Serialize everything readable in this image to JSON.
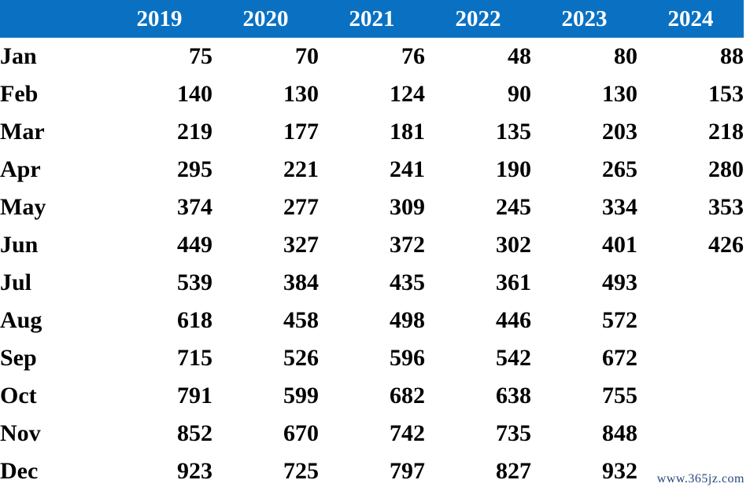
{
  "colors": {
    "header_bg": "#0a71c2",
    "header_text": "#ffffff",
    "body_text": "#000000",
    "watermark_text": "#25477d"
  },
  "table": {
    "columns": [
      "",
      "2019",
      "2020",
      "2021",
      "2022",
      "2023",
      "2024"
    ],
    "rows": [
      {
        "month": "Jan",
        "values": [
          "75",
          "70",
          "76",
          "48",
          "80",
          "88"
        ]
      },
      {
        "month": "Feb",
        "values": [
          "140",
          "130",
          "124",
          "90",
          "130",
          "153"
        ]
      },
      {
        "month": "Mar",
        "values": [
          "219",
          "177",
          "181",
          "135",
          "203",
          "218"
        ]
      },
      {
        "month": "Apr",
        "values": [
          "295",
          "221",
          "241",
          "190",
          "265",
          "280"
        ]
      },
      {
        "month": "May",
        "values": [
          "374",
          "277",
          "309",
          "245",
          "334",
          "353"
        ]
      },
      {
        "month": "Jun",
        "values": [
          "449",
          "327",
          "372",
          "302",
          "401",
          "426"
        ]
      },
      {
        "month": "Jul",
        "values": [
          "539",
          "384",
          "435",
          "361",
          "493",
          ""
        ]
      },
      {
        "month": "Aug",
        "values": [
          "618",
          "458",
          "498",
          "446",
          "572",
          ""
        ]
      },
      {
        "month": "Sep",
        "values": [
          "715",
          "526",
          "596",
          "542",
          "672",
          ""
        ]
      },
      {
        "month": "Oct",
        "values": [
          "791",
          "599",
          "682",
          "638",
          "755",
          ""
        ]
      },
      {
        "month": "Nov",
        "values": [
          "852",
          "670",
          "742",
          "735",
          "848",
          ""
        ]
      },
      {
        "month": "Dec",
        "values": [
          "923",
          "725",
          "797",
          "827",
          "932",
          ""
        ]
      }
    ]
  },
  "watermark": {
    "text": "www.365jz.com"
  },
  "chart_data": {
    "type": "table",
    "title": "",
    "categories": [
      "Jan",
      "Feb",
      "Mar",
      "Apr",
      "May",
      "Jun",
      "Jul",
      "Aug",
      "Sep",
      "Oct",
      "Nov",
      "Dec"
    ],
    "series": [
      {
        "name": "2019",
        "values": [
          75,
          140,
          219,
          295,
          374,
          449,
          539,
          618,
          715,
          791,
          852,
          923
        ]
      },
      {
        "name": "2020",
        "values": [
          70,
          130,
          177,
          221,
          277,
          327,
          384,
          458,
          526,
          599,
          670,
          725
        ]
      },
      {
        "name": "2021",
        "values": [
          76,
          124,
          181,
          241,
          309,
          372,
          435,
          498,
          596,
          682,
          742,
          797
        ]
      },
      {
        "name": "2022",
        "values": [
          48,
          90,
          135,
          190,
          245,
          302,
          361,
          446,
          542,
          638,
          735,
          827
        ]
      },
      {
        "name": "2023",
        "values": [
          80,
          130,
          203,
          265,
          334,
          401,
          493,
          572,
          672,
          755,
          848,
          932
        ]
      },
      {
        "name": "2024",
        "values": [
          88,
          153,
          218,
          280,
          353,
          426,
          null,
          null,
          null,
          null,
          null,
          null
        ]
      }
    ],
    "layout": {
      "header_row": "years",
      "first_column": "months",
      "grid": false,
      "header_fill": "#0a71c2"
    }
  }
}
